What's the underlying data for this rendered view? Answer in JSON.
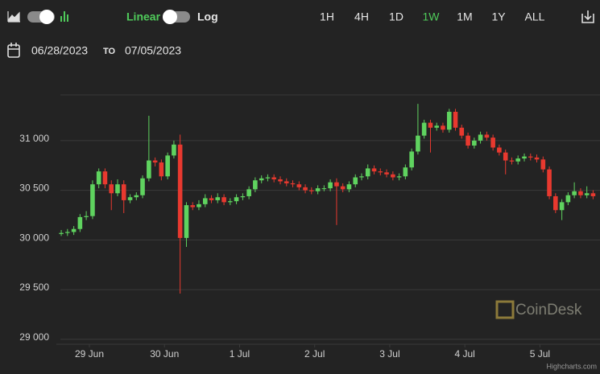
{
  "toolbar": {
    "scale_options": [
      "Linear",
      "Log"
    ],
    "log_scale": false,
    "ranges": [
      "1H",
      "4H",
      "1D",
      "1W",
      "1M",
      "1Y",
      "ALL"
    ],
    "active_range_index": 3,
    "active_color": "#4fca5a"
  },
  "date_range": {
    "start": "06/28/2023",
    "separator": "TO",
    "end": "07/05/2023"
  },
  "watermark": "CoinDesk",
  "credits": "Highcharts.com",
  "chart_data": {
    "type": "candlestick",
    "up_color": "#5fd35f",
    "down_color": "#e8392f",
    "grid": true,
    "xlim": [
      0.56,
      7.8
    ],
    "xticks": [
      {
        "value": 1,
        "label": "29 Jun"
      },
      {
        "value": 2,
        "label": "30 Jun"
      },
      {
        "value": 3,
        "label": "1 Jul"
      },
      {
        "value": 4,
        "label": "2 Jul"
      },
      {
        "value": 5,
        "label": "3 Jul"
      },
      {
        "value": 6,
        "label": "4 Jul"
      },
      {
        "value": 7,
        "label": "5 Jul"
      }
    ],
    "ylim": [
      28950,
      31460
    ],
    "yticks": [
      {
        "value": 29000,
        "label": "29 000"
      },
      {
        "value": 29500,
        "label": "29 500"
      },
      {
        "value": 30000,
        "label": "30 000"
      },
      {
        "value": 30500,
        "label": "30 500"
      },
      {
        "value": 31000,
        "label": "31 000"
      }
    ],
    "x": [
      0.625,
      0.708,
      0.792,
      0.875,
      0.958,
      1.042,
      1.125,
      1.208,
      1.292,
      1.375,
      1.458,
      1.542,
      1.625,
      1.708,
      1.792,
      1.875,
      1.958,
      2.042,
      2.125,
      2.208,
      2.292,
      2.375,
      2.458,
      2.542,
      2.625,
      2.708,
      2.792,
      2.875,
      2.958,
      3.042,
      3.125,
      3.208,
      3.292,
      3.375,
      3.458,
      3.542,
      3.625,
      3.708,
      3.792,
      3.875,
      3.958,
      4.042,
      4.125,
      4.208,
      4.292,
      4.375,
      4.458,
      4.542,
      4.625,
      4.708,
      4.792,
      4.875,
      4.958,
      5.042,
      5.125,
      5.208,
      5.292,
      5.375,
      5.458,
      5.542,
      5.625,
      5.708,
      5.792,
      5.875,
      5.958,
      6.042,
      6.125,
      6.208,
      6.292,
      6.375,
      6.458,
      6.542,
      6.625,
      6.708,
      6.792,
      6.875,
      6.958,
      7.042,
      7.125,
      7.208,
      7.292,
      7.375,
      7.458,
      7.542,
      7.625,
      7.708
    ],
    "open": [
      30060,
      30070,
      30080,
      30110,
      30230,
      30240,
      30560,
      30690,
      30560,
      30470,
      30560,
      30400,
      30430,
      30450,
      30620,
      30800,
      30780,
      30640,
      30850,
      30960,
      30020,
      30350,
      30330,
      30360,
      30420,
      30400,
      30430,
      30380,
      30390,
      30430,
      30440,
      30510,
      30600,
      30620,
      30630,
      30610,
      30590,
      30570,
      30560,
      30530,
      30500,
      30490,
      30520,
      30520,
      30580,
      30540,
      30510,
      30560,
      30630,
      30640,
      30720,
      30690,
      30680,
      30660,
      30630,
      30640,
      30730,
      30890,
      31050,
      31180,
      31130,
      31150,
      31110,
      31290,
      31130,
      31050,
      30950,
      31000,
      31060,
      31030,
      30930,
      30880,
      30800,
      30790,
      30820,
      30840,
      30830,
      30810,
      30710,
      30440,
      30300,
      30380,
      30450,
      30490,
      30450,
      30470
    ],
    "high": [
      30100,
      30110,
      30140,
      30260,
      30290,
      30600,
      30720,
      30720,
      30600,
      30610,
      30600,
      30460,
      30480,
      30650,
      31250,
      30830,
      30810,
      30880,
      31000,
      31060,
      30380,
      30380,
      30400,
      30460,
      30450,
      30470,
      30460,
      30420,
      30460,
      30470,
      30540,
      30630,
      30650,
      30660,
      30660,
      30640,
      30620,
      30600,
      30590,
      30560,
      30530,
      30550,
      30550,
      30610,
      30620,
      30570,
      30590,
      30660,
      30670,
      30760,
      30750,
      30720,
      30710,
      30690,
      30670,
      30760,
      30920,
      31370,
      31210,
      31210,
      31180,
      31180,
      31320,
      31320,
      31160,
      31080,
      31030,
      31090,
      31090,
      31060,
      30960,
      30910,
      30830,
      30850,
      30870,
      30870,
      30860,
      30840,
      30740,
      30470,
      30410,
      30480,
      30580,
      30520,
      30540,
      30500
    ],
    "low": [
      30040,
      30040,
      30050,
      30080,
      30200,
      30210,
      30520,
      30520,
      30300,
      30440,
      30270,
      30370,
      30400,
      30420,
      30590,
      30740,
      30600,
      30610,
      30820,
      29460,
      29930,
      30300,
      30300,
      30330,
      30370,
      30370,
      30350,
      30350,
      30360,
      30400,
      30410,
      30480,
      30570,
      30590,
      30580,
      30560,
      30540,
      30530,
      30500,
      30470,
      30460,
      30460,
      30490,
      30490,
      30150,
      30480,
      30480,
      30530,
      30600,
      30610,
      30660,
      30650,
      30630,
      30600,
      30600,
      30610,
      30700,
      30860,
      31020,
      30880,
      31100,
      31080,
      31080,
      31100,
      31020,
      30920,
      30920,
      30970,
      31000,
      30900,
      30850,
      30660,
      30760,
      30760,
      30790,
      30800,
      30780,
      30680,
      30410,
      30270,
      30200,
      30350,
      30420,
      30420,
      30420,
      30410
    ],
    "close": [
      30070,
      30080,
      30110,
      30230,
      30240,
      30560,
      30690,
      30560,
      30470,
      30560,
      30400,
      30430,
      30450,
      30620,
      30800,
      30780,
      30640,
      30850,
      30960,
      30020,
      30350,
      30330,
      30360,
      30420,
      30400,
      30430,
      30380,
      30390,
      30430,
      30440,
      30510,
      30600,
      30620,
      30630,
      30610,
      30590,
      30570,
      30560,
      30530,
      30500,
      30490,
      30520,
      30520,
      30580,
      30540,
      30510,
      30560,
      30630,
      30640,
      30720,
      30690,
      30680,
      30660,
      30630,
      30640,
      30730,
      30890,
      31050,
      31180,
      31130,
      31150,
      31110,
      31290,
      31130,
      31050,
      30950,
      31000,
      31060,
      31030,
      30930,
      30880,
      30800,
      30790,
      30820,
      30840,
      30830,
      30810,
      30710,
      30440,
      30300,
      30380,
      30450,
      30490,
      30450,
      30470,
      30440
    ]
  }
}
